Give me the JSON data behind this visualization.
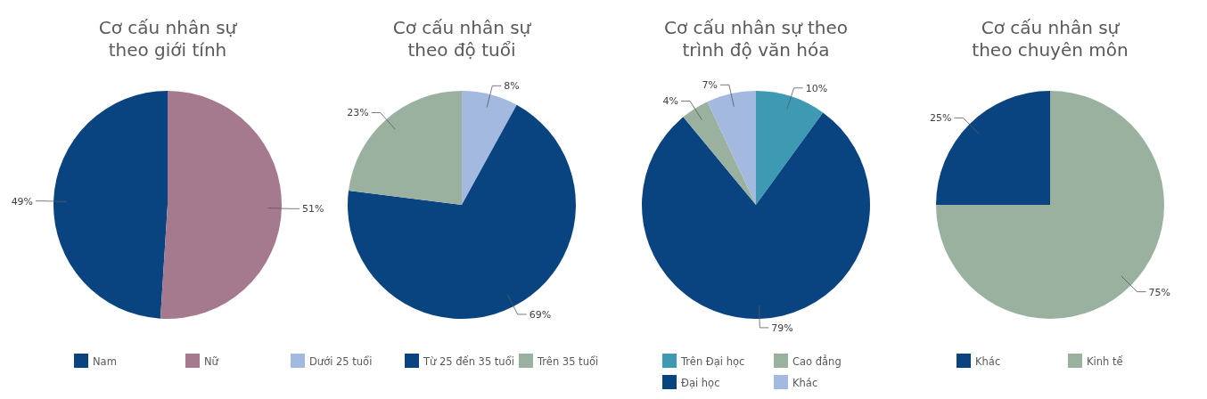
{
  "chart_data": [
    {
      "type": "pie",
      "title": "Cơ cấu nhân sự\ntheo giới tính",
      "categories": [
        "Nam",
        "Nữ"
      ],
      "values": [
        49,
        51
      ],
      "value_labels": [
        "49%",
        "51%"
      ],
      "colors": [
        "#0a4480",
        "#a67a8e"
      ],
      "legend": "bottom"
    },
    {
      "type": "pie",
      "title": "Cơ cấu nhân sự\ntheo độ tuổi",
      "categories": [
        "Dưới 25 tuổi",
        "Từ 25 đến 35 tuổi",
        "Trên 35 tuổi"
      ],
      "values": [
        8,
        69,
        23
      ],
      "value_labels": [
        "8%",
        "69%",
        "23%"
      ],
      "colors": [
        "#a3b9e0",
        "#0a4480",
        "#9bb1a0"
      ],
      "legend": "bottom"
    },
    {
      "type": "pie",
      "title": "Cơ cấu nhân sự theo\ntrình độ văn hóa",
      "categories": [
        "Trên Đại học",
        "Đại học",
        "Cao đẳng",
        "Khác"
      ],
      "values": [
        10,
        79,
        4,
        7
      ],
      "value_labels": [
        "10%",
        "79%",
        "4%",
        "7%"
      ],
      "colors": [
        "#3e9ab2",
        "#0a4480",
        "#9bb1a0",
        "#a3b9e0"
      ],
      "legend": "bottom"
    },
    {
      "type": "pie",
      "title": "Cơ cấu nhân sự\ntheo chuyên môn",
      "categories": [
        "Khác",
        "Kinh tế"
      ],
      "values": [
        25,
        75
      ],
      "value_labels": [
        "25%",
        "75%"
      ],
      "colors": [
        "#0a4480",
        "#9bb1a0"
      ],
      "legend": "bottom"
    }
  ]
}
